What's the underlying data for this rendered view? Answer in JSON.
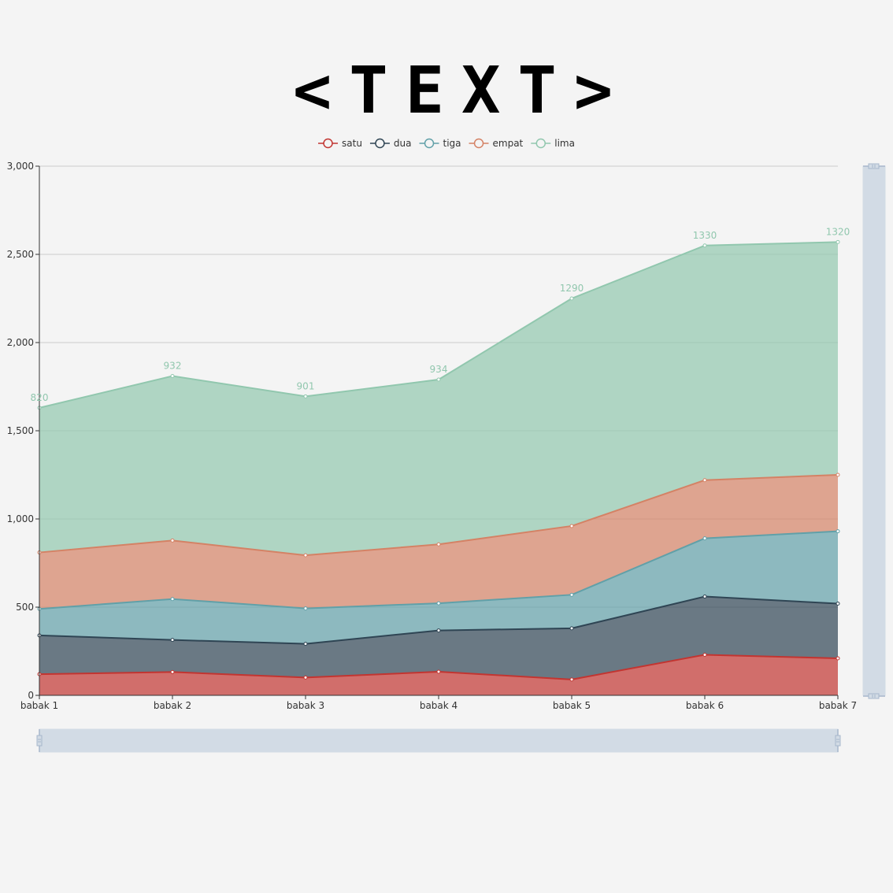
{
  "chart_data": {
    "type": "area",
    "stacked": true,
    "title": "<TEXT>",
    "categories": [
      "babak 1",
      "babak 2",
      "babak 3",
      "babak 4",
      "babak 5",
      "babak 6",
      "babak 7"
    ],
    "ylim": [
      0,
      3000
    ],
    "yticks": [
      0,
      500,
      1000,
      1500,
      2000,
      2500,
      3000
    ],
    "ytick_labels": [
      "0",
      "500",
      "1,000",
      "1,500",
      "2,000",
      "2,500",
      "3,000"
    ],
    "grid": true,
    "legend_position": "top-center",
    "series": [
      {
        "name": "satu",
        "color": "#c23531",
        "values": [
          120,
          132,
          101,
          134,
          90,
          230,
          210
        ]
      },
      {
        "name": "dua",
        "color": "#2f4554",
        "values": [
          220,
          182,
          191,
          234,
          290,
          330,
          310
        ]
      },
      {
        "name": "tiga",
        "color": "#61a0a8",
        "values": [
          150,
          232,
          201,
          154,
          190,
          330,
          410
        ]
      },
      {
        "name": "empat",
        "color": "#d48265",
        "values": [
          320,
          332,
          301,
          334,
          390,
          330,
          320
        ]
      },
      {
        "name": "lima",
        "color": "#91c7ae",
        "values": [
          820,
          932,
          901,
          934,
          1290,
          1330,
          1320
        ],
        "show_labels": true
      }
    ]
  }
}
